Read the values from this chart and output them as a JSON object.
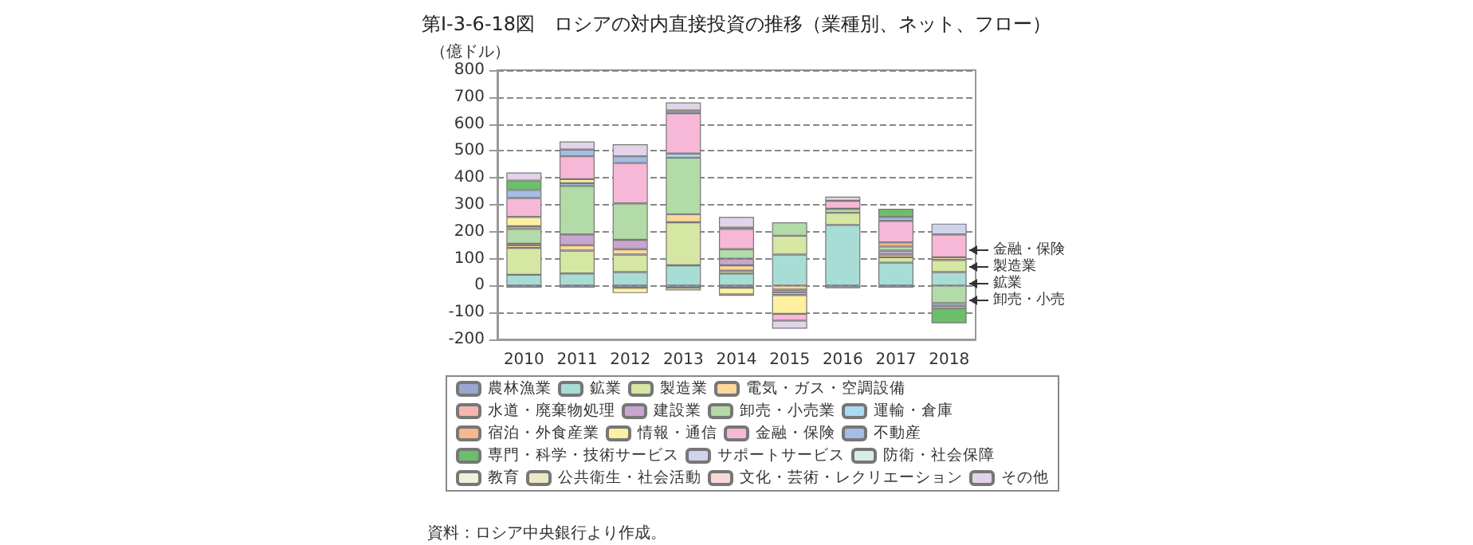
{
  "chart_data": {
    "type": "bar",
    "stacked": true,
    "title": "第Ⅰ-3-6-18図　ロシアの対内直接投資の推移（業種別、ネット、フロー）",
    "ylabel": "（億ドル）",
    "categories": [
      "2010",
      "2011",
      "2012",
      "2013",
      "2014",
      "2015",
      "2016",
      "2017",
      "2018"
    ],
    "ylim": [
      -200,
      800
    ],
    "yticks": [
      -200,
      -100,
      0,
      100,
      200,
      300,
      400,
      500,
      600,
      700,
      800
    ],
    "grid": "y",
    "legend": "bottom",
    "series": [
      {
        "name": "農林漁業",
        "color": "#9aa6d0",
        "values": [
          -8,
          -8,
          -8,
          -8,
          -8,
          null,
          -10,
          -8,
          null
        ]
      },
      {
        "name": "鉱業",
        "color": "#a8ddd6",
        "values": [
          40,
          45,
          50,
          75,
          45,
          115,
          225,
          85,
          50
        ]
      },
      {
        "name": "製造業",
        "color": "#d6e6a3",
        "values": [
          100,
          85,
          65,
          160,
          10,
          70,
          45,
          20,
          45
        ]
      },
      {
        "name": "電気・ガス・空調設備",
        "color": "#fbd79a",
        "values": [
          10,
          20,
          20,
          30,
          20,
          -15,
          null,
          10,
          10
        ]
      },
      {
        "name": "水道・廃棄物処理",
        "color": "#f6b5b0",
        "values": [
          null,
          null,
          null,
          null,
          null,
          null,
          null,
          null,
          null
        ]
      },
      {
        "name": "建設業",
        "color": "#c9a6d0",
        "values": [
          5,
          40,
          35,
          null,
          25,
          -10,
          null,
          15,
          null
        ]
      },
      {
        "name": "卸売・小売業",
        "color": "#b2dba7",
        "values": [
          55,
          180,
          135,
          210,
          35,
          50,
          15,
          15,
          -65
        ]
      },
      {
        "name": "運輸・倉庫",
        "color": "#a9dcf2",
        "values": [
          null,
          10,
          null,
          15,
          null,
          -10,
          null,
          null,
          -10
        ]
      },
      {
        "name": "宿泊・外食産業",
        "color": "#f7b88e",
        "values": [
          10,
          null,
          null,
          null,
          null,
          null,
          null,
          15,
          -10
        ]
      },
      {
        "name": "情報・通信",
        "color": "#fdf0a0",
        "values": [
          35,
          15,
          -20,
          -10,
          -25,
          -70,
          null,
          null,
          null
        ]
      },
      {
        "name": "金融・保険",
        "color": "#f6b8d6",
        "values": [
          70,
          85,
          150,
          150,
          75,
          -25,
          30,
          80,
          85
        ]
      },
      {
        "name": "不動産",
        "color": "#a3bde6",
        "values": [
          30,
          25,
          25,
          10,
          -5,
          null,
          null,
          15,
          null
        ]
      },
      {
        "name": "専門・科学・技術サービス",
        "color": "#6cbf6a",
        "values": [
          35,
          null,
          null,
          null,
          5,
          null,
          null,
          30,
          -55
        ]
      },
      {
        "name": "サポートサービス",
        "color": "#cfd3ec",
        "values": [
          null,
          null,
          null,
          null,
          null,
          null,
          null,
          null,
          40
        ]
      },
      {
        "name": "防衛・社会保障",
        "color": "#d8ede6",
        "values": [
          null,
          null,
          null,
          null,
          null,
          null,
          null,
          null,
          null
        ]
      },
      {
        "name": "教育",
        "color": "#f1f0d8",
        "values": [
          null,
          null,
          null,
          null,
          null,
          null,
          null,
          null,
          null
        ]
      },
      {
        "name": "公共衛生・社会活動",
        "color": "#efe7c6",
        "values": [
          null,
          null,
          null,
          null,
          null,
          null,
          null,
          null,
          null
        ]
      },
      {
        "name": "文化・芸術・レクリエーション",
        "color": "#f9d8d8",
        "values": [
          null,
          null,
          null,
          null,
          null,
          null,
          null,
          null,
          null
        ]
      },
      {
        "name": "その他",
        "color": "#e3d3e8",
        "values": [
          30,
          30,
          45,
          30,
          40,
          -30,
          15,
          null,
          null
        ]
      }
    ],
    "annotations": [
      "金融・保険",
      "製造業",
      "鉱業",
      "卸売・小売",
      "資料：ロシア中央銀行より作成。"
    ]
  }
}
